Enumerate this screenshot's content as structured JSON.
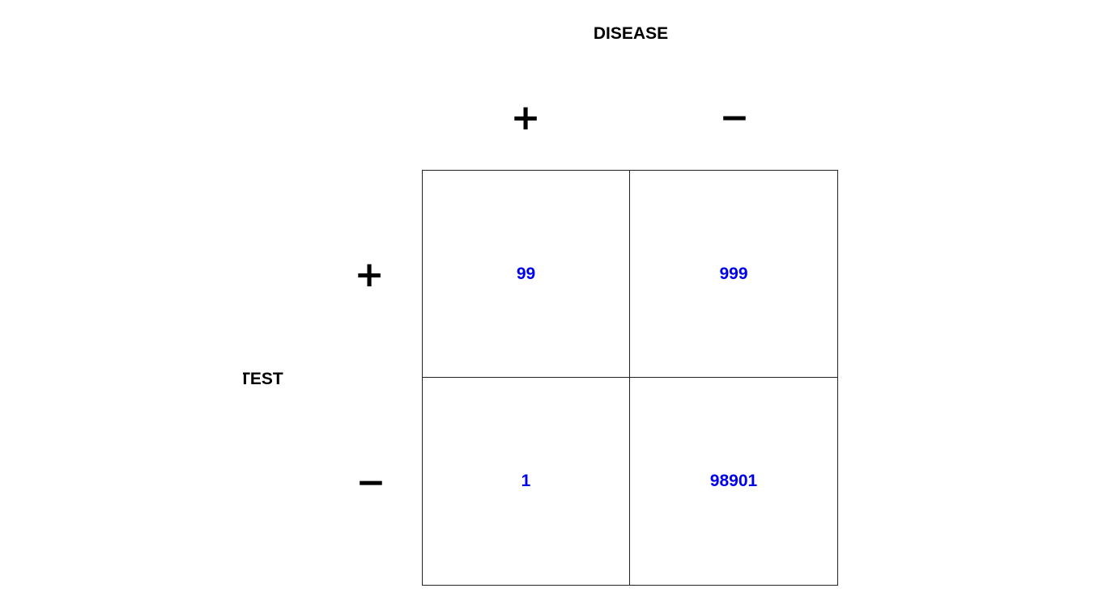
{
  "column_header": "DISEASE",
  "row_header": "TEST",
  "column_signs": [
    "+",
    "−"
  ],
  "row_signs": [
    "+",
    "−"
  ],
  "cells": {
    "test_pos_disease_pos": "99",
    "test_pos_disease_neg": "999",
    "test_neg_disease_pos": "1",
    "test_neg_disease_neg": "98901"
  },
  "colors": {
    "cell_value": "#0000ee",
    "label": "#000000",
    "grid_line": "#222222"
  }
}
